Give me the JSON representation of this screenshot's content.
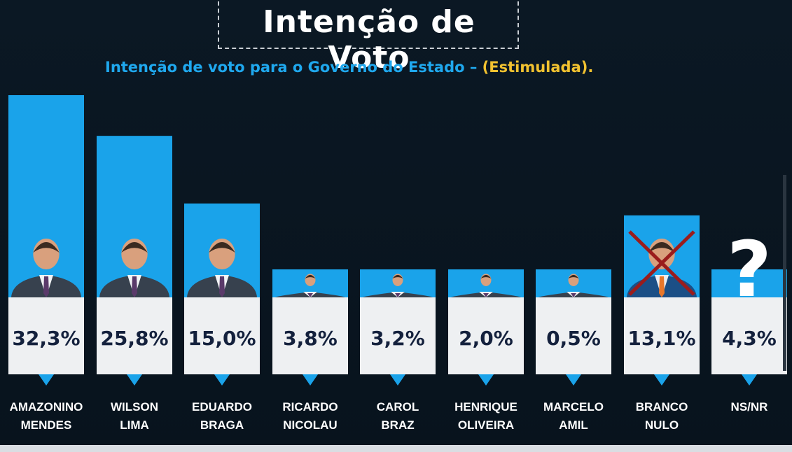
{
  "header": {
    "title": "Intenção de Voto",
    "subtitle_main": "Intenção de voto para o Governo do Estado – ",
    "subtitle_highlight": "(Estimulada)",
    "subtitle_end": "."
  },
  "colors": {
    "bar": "#1aa3ea",
    "value_box": "#eef0f2",
    "value_text": "#14213d",
    "label_text": "#ffffff",
    "highlight": "#f2c230"
  },
  "chart_data": {
    "type": "bar",
    "title": "Intenção de Voto",
    "subtitle": "Intenção de voto para o Governo do Estado – (Estimulada).",
    "categories": [
      [
        "AMAZONINO",
        "MENDES"
      ],
      [
        "WILSON",
        "LIMA"
      ],
      [
        "EDUARDO",
        "BRAGA"
      ],
      [
        "RICARDO",
        "NICOLAU"
      ],
      [
        "CAROL",
        "BRAZ"
      ],
      [
        "HENRIQUE",
        "OLIVEIRA"
      ],
      [
        "MARCELO",
        "AMIL"
      ],
      [
        "BRANCO",
        "NULO"
      ],
      [
        "NS/NR"
      ]
    ],
    "values": [
      32.3,
      25.8,
      15.0,
      3.8,
      3.2,
      2.0,
      0.5,
      13.1,
      4.3
    ],
    "value_labels": [
      "32,3%",
      "25,8%",
      "15,0%",
      "3,8%",
      "3,2%",
      "2,0%",
      "0,5%",
      "13,1%",
      "4,3%"
    ],
    "photo_icons": [
      "person-photo",
      "person-photo",
      "person-photo",
      "person-photo",
      "person-photo",
      "person-photo",
      "person-photo",
      "crossed-person-icon",
      "question-mark-icon"
    ],
    "ylim": [
      0,
      32.3
    ],
    "grid": false,
    "legend": "none"
  }
}
